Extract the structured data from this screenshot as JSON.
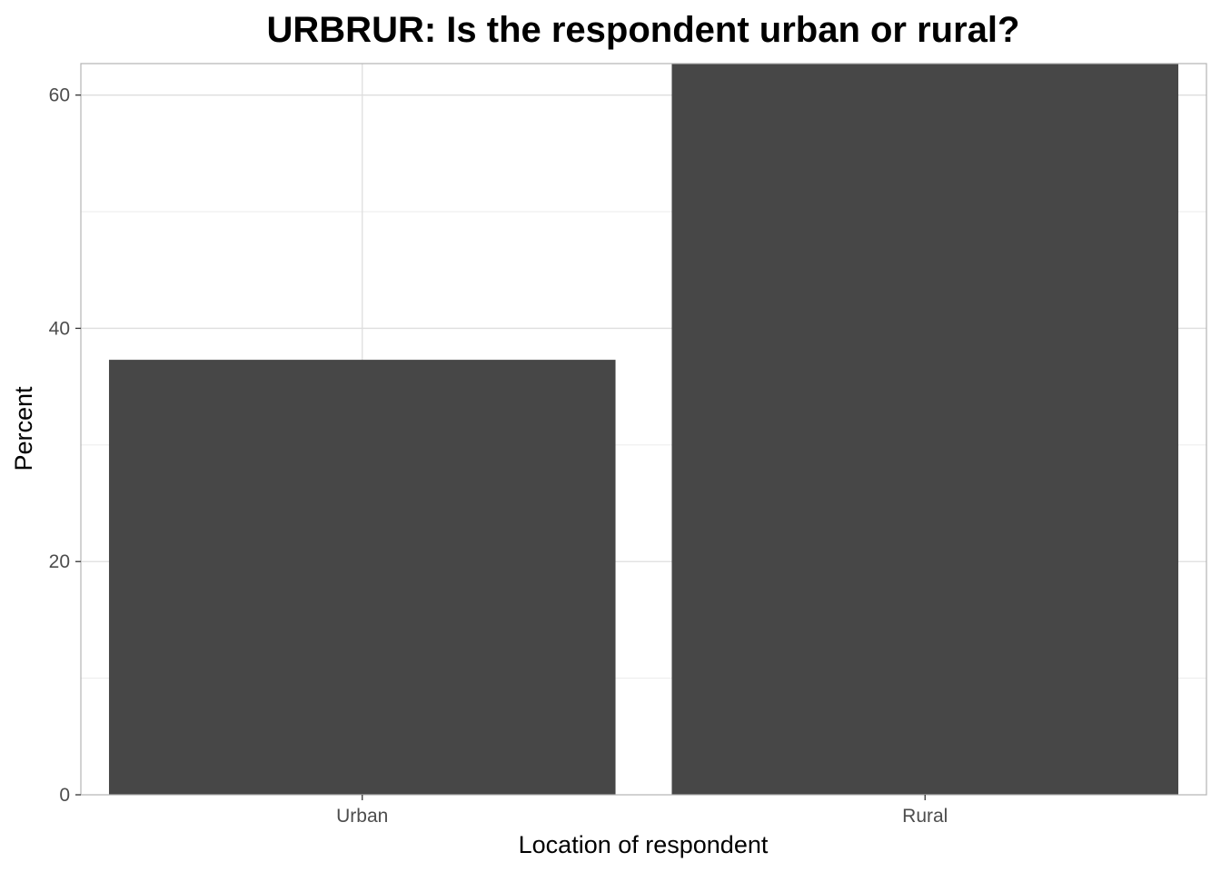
{
  "chart_data": {
    "type": "bar",
    "title": "URBRUR: Is the respondent urban or rural?",
    "xlabel": "Location of respondent",
    "ylabel": "Percent",
    "categories": [
      "Urban",
      "Rural"
    ],
    "values": [
      37.3,
      62.7
    ],
    "ylim": [
      0,
      62.7
    ],
    "yticks": [
      0,
      20,
      40,
      60
    ],
    "ytick_labels": [
      "0",
      "20",
      "40",
      "60"
    ],
    "grid": true,
    "legend": "none",
    "bar_color": "#474747",
    "grid_major_color": "#dedede",
    "grid_minor_color": "#ebebeb",
    "panel_border_color": "#b3b3b3"
  }
}
